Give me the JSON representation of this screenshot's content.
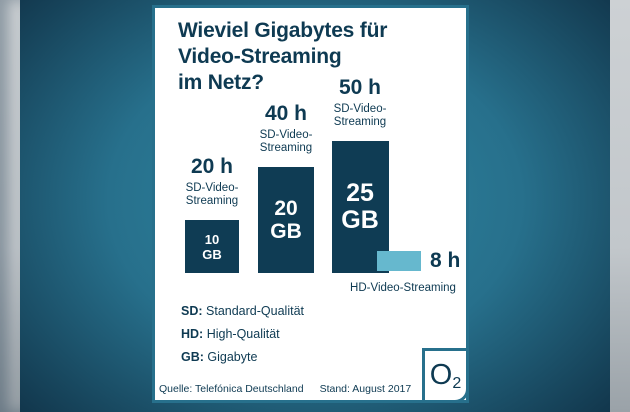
{
  "title_lines": [
    "Wieviel Gigabytes für",
    "Video-Streaming",
    "im Netz?"
  ],
  "chart_data": {
    "type": "bar",
    "title": "Wieviel Gigabytes für Video-Streaming im Netz?",
    "unit": "GB",
    "series": [
      {
        "hours": "20 h",
        "quality": "SD-Video-Streaming",
        "gb": 10,
        "value_num": "10",
        "value_unit": "GB"
      },
      {
        "hours": "40 h",
        "quality": "SD-Video-Streaming",
        "gb": 20,
        "value_num": "20",
        "value_unit": "GB"
      },
      {
        "hours": "50 h",
        "quality": "SD-Video-Streaming",
        "gb": 25,
        "value_num": "25",
        "value_unit": "GB"
      },
      {
        "hours": "8 h",
        "quality": "HD-Video-Streaming",
        "gb": null
      }
    ],
    "ylim": [
      0,
      25
    ],
    "legend_position": "bottom-left",
    "grid": false
  },
  "legend": {
    "items": [
      {
        "abbr": "SD:",
        "text": "Standard-Qualität"
      },
      {
        "abbr": "HD:",
        "text": "High-Qualität"
      },
      {
        "abbr": "GB:",
        "text": "Gigabyte"
      }
    ]
  },
  "footer": {
    "source": "Quelle: Telefónica Deutschland",
    "date": "Stand: August 2017"
  },
  "logo": {
    "letter": "O",
    "sub": "2"
  },
  "colors": {
    "frame": "#27708c",
    "bar_sd": "#0f3c54",
    "bar_hd": "#66b8ce",
    "text": "#0e3a52",
    "card_bg": "#ffffff",
    "background_teal": "#2f86a0"
  }
}
